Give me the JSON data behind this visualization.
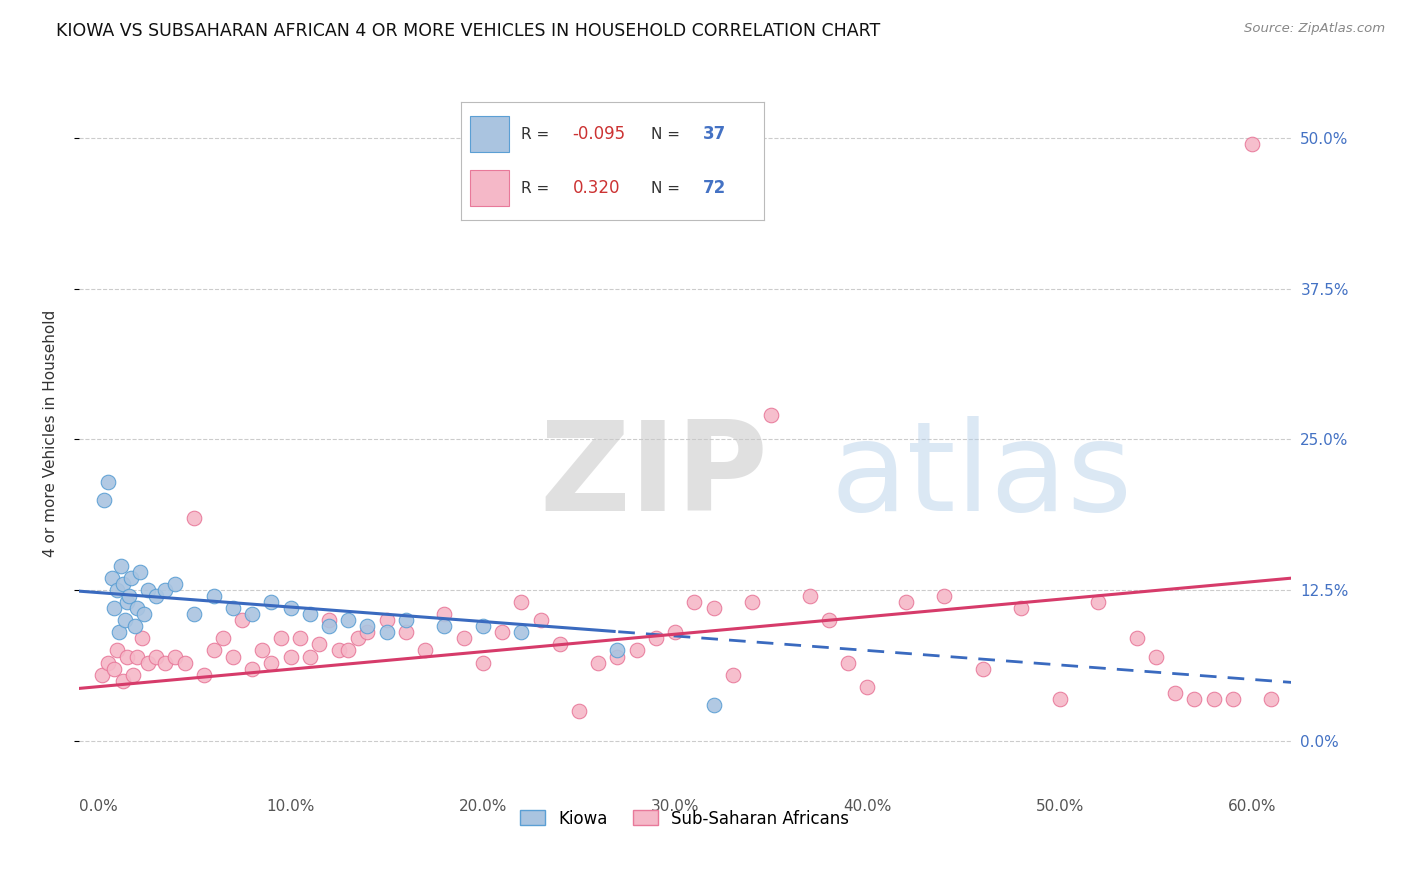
{
  "title": "KIOWA VS SUBSAHARAN AFRICAN 4 OR MORE VEHICLES IN HOUSEHOLD CORRELATION CHART",
  "source": "Source: ZipAtlas.com",
  "xlabel_vals": [
    0.0,
    10.0,
    20.0,
    30.0,
    40.0,
    50.0,
    60.0
  ],
  "ylabel": "4 or more Vehicles in Household",
  "ylabel_vals_right": [
    0.0,
    12.5,
    25.0,
    37.5,
    50.0
  ],
  "xlim": [
    -1.0,
    62.0
  ],
  "ylim": [
    -4.0,
    55.0
  ],
  "kiowa_color": "#aac4e0",
  "kiowa_edge": "#5b9fd4",
  "subsaharan_color": "#f5b8c8",
  "subsaharan_edge": "#e8799a",
  "trend_kiowa_color": "#3a6abf",
  "trend_subsaharan_color": "#d63b6a",
  "watermark": "ZIPatlas",
  "watermark_color": "#d0d0d0",
  "background_color": "#ffffff",
  "grid_color": "#cccccc",
  "legend_kiowa_R": "-0.095",
  "legend_kiowa_N": "37",
  "legend_subsaharan_R": "0.320",
  "legend_subsaharan_N": "72",
  "kiowa_x": [
    0.3,
    0.5,
    0.7,
    0.8,
    1.0,
    1.1,
    1.2,
    1.3,
    1.4,
    1.5,
    1.6,
    1.7,
    1.9,
    2.0,
    2.2,
    2.4,
    2.6,
    3.0,
    3.5,
    4.0,
    5.0,
    6.0,
    7.0,
    8.0,
    9.0,
    10.0,
    11.0,
    12.0,
    13.0,
    14.0,
    15.0,
    16.0,
    18.0,
    20.0,
    22.0,
    27.0,
    32.0
  ],
  "kiowa_y": [
    20.0,
    21.5,
    13.5,
    11.0,
    12.5,
    9.0,
    14.5,
    13.0,
    10.0,
    11.5,
    12.0,
    13.5,
    9.5,
    11.0,
    14.0,
    10.5,
    12.5,
    12.0,
    12.5,
    13.0,
    10.5,
    12.0,
    11.0,
    10.5,
    11.5,
    11.0,
    10.5,
    9.5,
    10.0,
    9.5,
    9.0,
    10.0,
    9.5,
    9.5,
    9.0,
    7.5,
    3.0
  ],
  "subsaharan_x": [
    0.2,
    0.5,
    0.8,
    1.0,
    1.3,
    1.5,
    1.8,
    2.0,
    2.3,
    2.6,
    3.0,
    3.5,
    4.0,
    4.5,
    5.0,
    5.5,
    6.0,
    6.5,
    7.0,
    7.5,
    8.0,
    8.5,
    9.0,
    9.5,
    10.0,
    10.5,
    11.0,
    11.5,
    12.0,
    12.5,
    13.0,
    13.5,
    14.0,
    15.0,
    16.0,
    17.0,
    18.0,
    19.0,
    20.0,
    21.0,
    22.0,
    23.0,
    24.0,
    25.0,
    26.0,
    27.0,
    28.0,
    29.0,
    30.0,
    31.0,
    32.0,
    33.0,
    34.0,
    35.0,
    37.0,
    38.0,
    39.0,
    40.0,
    42.0,
    44.0,
    46.0,
    48.0,
    50.0,
    52.0,
    54.0,
    55.0,
    56.0,
    57.0,
    58.0,
    59.0,
    60.0,
    61.0
  ],
  "subsaharan_y": [
    5.5,
    6.5,
    6.0,
    7.5,
    5.0,
    7.0,
    5.5,
    7.0,
    8.5,
    6.5,
    7.0,
    6.5,
    7.0,
    6.5,
    18.5,
    5.5,
    7.5,
    8.5,
    7.0,
    10.0,
    6.0,
    7.5,
    6.5,
    8.5,
    7.0,
    8.5,
    7.0,
    8.0,
    10.0,
    7.5,
    7.5,
    8.5,
    9.0,
    10.0,
    9.0,
    7.5,
    10.5,
    8.5,
    6.5,
    9.0,
    11.5,
    10.0,
    8.0,
    2.5,
    6.5,
    7.0,
    7.5,
    8.5,
    9.0,
    11.5,
    11.0,
    5.5,
    11.5,
    27.0,
    12.0,
    10.0,
    6.5,
    4.5,
    11.5,
    12.0,
    6.0,
    11.0,
    3.5,
    11.5,
    8.5,
    7.0,
    4.0,
    3.5,
    3.5,
    3.5,
    49.5,
    3.5
  ]
}
